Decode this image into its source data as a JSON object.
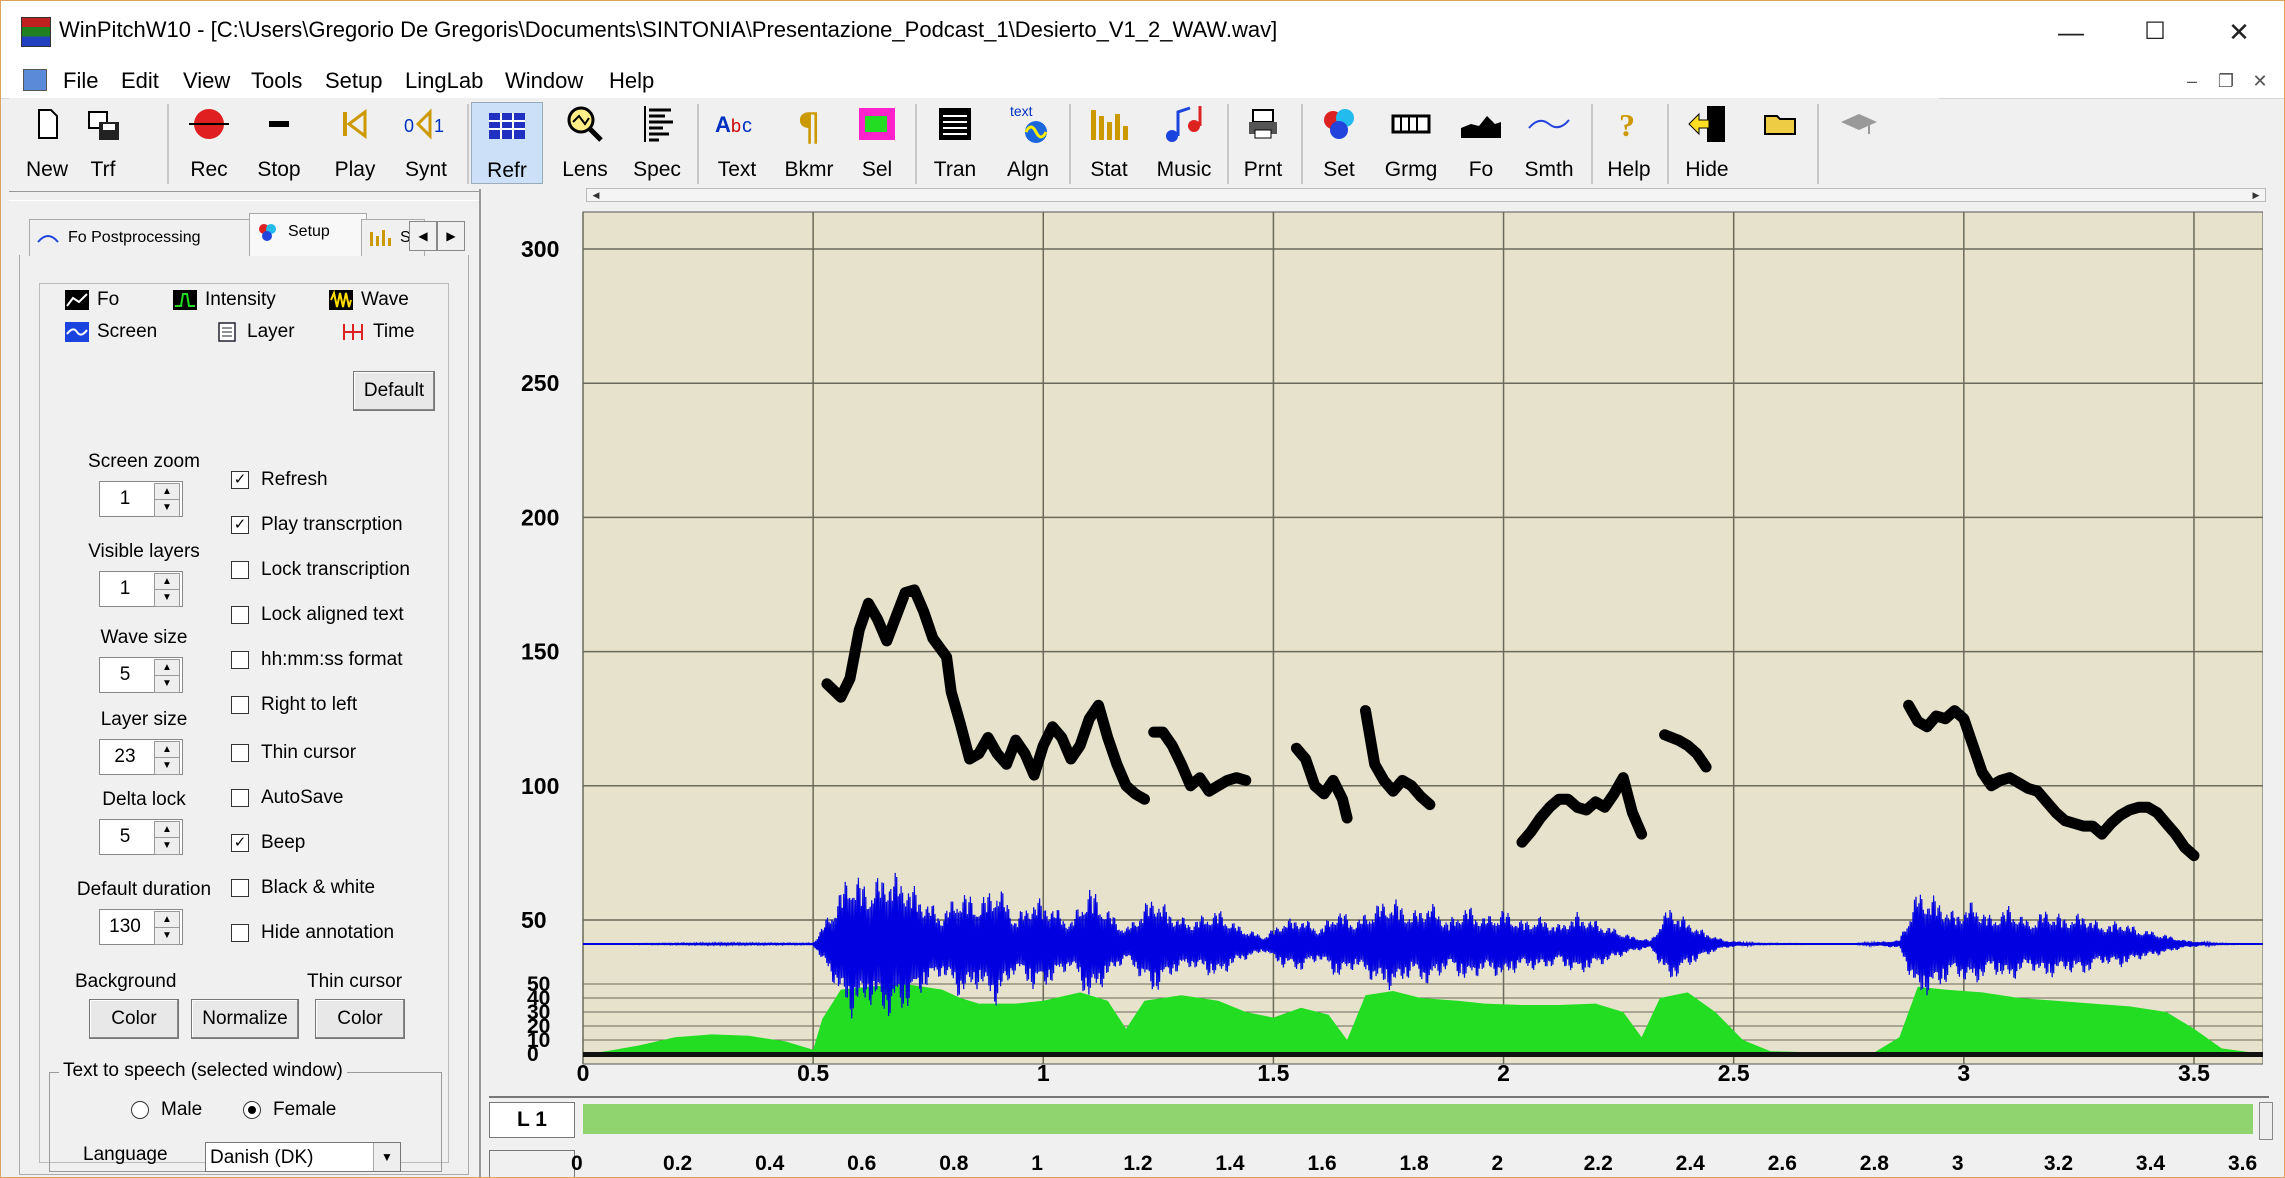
{
  "window": {
    "title": "WinPitchW10 - [C:\\Users\\Gregorio De Gregoris\\Documents\\SINTONIA\\Presentazione_Podcast_1\\Desierto_V1_2_WAW.wav]",
    "minimize_icon": "minimize-icon",
    "maximize_icon": "maximize-icon",
    "close_icon": "close-icon"
  },
  "menu": {
    "items": [
      {
        "label": "File"
      },
      {
        "label": "Edit"
      },
      {
        "label": "View"
      },
      {
        "label": "Tools"
      },
      {
        "label": "Setup"
      },
      {
        "label": "LingLab"
      },
      {
        "label": "Window"
      },
      {
        "label": "Help"
      }
    ]
  },
  "toolbar": {
    "buttons": [
      {
        "label": "New",
        "icon": "new-file-icon"
      },
      {
        "label": "Trf",
        "icon": "transfer-icon"
      },
      {
        "label": "Rec",
        "icon": "record-icon",
        "color": "#e02020"
      },
      {
        "label": "Stop",
        "icon": "stop-icon"
      },
      {
        "label": "Play",
        "icon": "play-icon"
      },
      {
        "label": "Synt",
        "icon": "synth-icon"
      },
      {
        "label": "Refr",
        "icon": "refresh-icon",
        "color": "#2030c0"
      },
      {
        "label": "Lens",
        "icon": "lens-icon"
      },
      {
        "label": "Spec",
        "icon": "spectrum-icon"
      },
      {
        "label": "Text",
        "icon": "text-icon"
      },
      {
        "label": "Bkmr",
        "icon": "bookmark-icon"
      },
      {
        "label": "Sel",
        "icon": "select-icon"
      },
      {
        "label": "Tran",
        "icon": "transcription-icon"
      },
      {
        "label": "Algn",
        "icon": "align-icon",
        "sublabel": "text"
      },
      {
        "label": "Stat",
        "icon": "stats-icon"
      },
      {
        "label": "Music",
        "icon": "music-icon"
      },
      {
        "label": "Prnt",
        "icon": "print-icon"
      },
      {
        "label": "Set",
        "icon": "settings-icon"
      },
      {
        "label": "Grmg",
        "icon": "grammar-icon"
      },
      {
        "label": "Fo",
        "icon": "fo-icon"
      },
      {
        "label": "Smth",
        "icon": "smooth-icon"
      },
      {
        "label": "Help",
        "icon": "help-icon"
      },
      {
        "label": "Hide",
        "icon": "hide-icon"
      },
      {
        "label": "",
        "icon": "open-folder-icon"
      },
      {
        "label": "",
        "icon": "hat-icon"
      }
    ]
  },
  "left_panel": {
    "top_tabs": [
      {
        "label": "Fo Postprocessing",
        "icon": "fo-curve-icon"
      },
      {
        "label": "Setup",
        "icon": "setup-icon"
      },
      {
        "label": "S",
        "icon": "stats-icon"
      }
    ],
    "sub_tabs": [
      {
        "label": "Fo",
        "icon": "fo-icon"
      },
      {
        "label": "Intensity",
        "icon": "intensity-icon"
      },
      {
        "label": "Wave",
        "icon": "wave-icon"
      },
      {
        "label": "Screen",
        "icon": "screen-icon"
      },
      {
        "label": "Layer",
        "icon": "layer-icon"
      },
      {
        "label": "Time",
        "icon": "time-icon"
      }
    ],
    "default_button": "Default",
    "fields": [
      {
        "label": "Screen zoom",
        "value": "1"
      },
      {
        "label": "Visible layers",
        "value": "1"
      },
      {
        "label": "Wave size",
        "value": "5"
      },
      {
        "label": "Layer size",
        "value": "23"
      },
      {
        "label": "Delta lock",
        "value": "5"
      },
      {
        "label": "Default duration",
        "value": "130"
      }
    ],
    "checkboxes": [
      {
        "label": "Refresh",
        "checked": true
      },
      {
        "label": "Play transcrption",
        "checked": true
      },
      {
        "label": "Lock transcription",
        "checked": false
      },
      {
        "label": "Lock aligned text",
        "checked": false
      },
      {
        "label": "hh:mm:ss format",
        "checked": false
      },
      {
        "label": "Right to left",
        "checked": false
      },
      {
        "label": "Thin cursor",
        "checked": false
      },
      {
        "label": "AutoSave",
        "checked": false
      },
      {
        "label": "Beep",
        "checked": true
      },
      {
        "label": "Black & white",
        "checked": false
      },
      {
        "label": "Hide annotation",
        "checked": false
      }
    ],
    "background_label": "Background",
    "thin_cursor_label": "Thin cursor",
    "color_button": "Color",
    "normalize_button": "Normalize",
    "color_button_2": "Color",
    "tts": {
      "legend": "Text to speech (selected window)",
      "male": "Male",
      "female": "Female",
      "selected": "Female",
      "language_label": "Language",
      "language_value": "Danish (DK)"
    }
  },
  "chart_data": {
    "type": "line",
    "y_ticks_pitch": [
      "300",
      "250",
      "200",
      "150",
      "100",
      "50"
    ],
    "y_ticks_intensity": [
      "50",
      "40",
      "30",
      "20",
      "10",
      "0"
    ],
    "x_ticks": [
      "0",
      "0.5",
      "1",
      "1.5",
      "2",
      "2.5",
      "3",
      "3.5"
    ],
    "xlim": [
      0,
      3.65
    ],
    "ylim_pitch": [
      50,
      300
    ],
    "grid": true,
    "background_color": "#e6e2cb",
    "pitch_color": "#000000",
    "waveform_color": "#0000e0",
    "intensity_color": "#22dd22",
    "pitch_segments": [
      [
        [
          0.53,
          138
        ],
        [
          0.56,
          133
        ],
        [
          0.58,
          140
        ],
        [
          0.6,
          158
        ],
        [
          0.62,
          168
        ],
        [
          0.64,
          162
        ],
        [
          0.66,
          154
        ],
        [
          0.68,
          163
        ],
        [
          0.7,
          172
        ],
        [
          0.72,
          173
        ],
        [
          0.74,
          165
        ],
        [
          0.76,
          155
        ],
        [
          0.79,
          148
        ],
        [
          0.8,
          135
        ],
        [
          0.82,
          123
        ],
        [
          0.84,
          110
        ],
        [
          0.86,
          112
        ],
        [
          0.88,
          118
        ],
        [
          0.9,
          112
        ],
        [
          0.92,
          108
        ],
        [
          0.94,
          117
        ],
        [
          0.96,
          112
        ],
        [
          0.98,
          104
        ],
        [
          1.0,
          115
        ],
        [
          1.02,
          122
        ],
        [
          1.04,
          118
        ],
        [
          1.06,
          110
        ],
        [
          1.08,
          115
        ],
        [
          1.1,
          125
        ],
        [
          1.12,
          130
        ],
        [
          1.14,
          118
        ],
        [
          1.16,
          108
        ],
        [
          1.18,
          100
        ],
        [
          1.2,
          97
        ],
        [
          1.22,
          95
        ]
      ],
      [
        [
          1.24,
          120
        ],
        [
          1.26,
          120
        ],
        [
          1.28,
          115
        ],
        [
          1.3,
          108
        ],
        [
          1.32,
          100
        ],
        [
          1.34,
          103
        ],
        [
          1.36,
          98
        ],
        [
          1.38,
          100
        ],
        [
          1.4,
          102
        ],
        [
          1.42,
          103
        ],
        [
          1.44,
          102
        ]
      ],
      [
        [
          1.55,
          114
        ],
        [
          1.57,
          110
        ],
        [
          1.59,
          100
        ],
        [
          1.61,
          97
        ],
        [
          1.63,
          102
        ],
        [
          1.65,
          95
        ],
        [
          1.66,
          88
        ]
      ],
      [
        [
          1.7,
          128
        ],
        [
          1.71,
          118
        ],
        [
          1.72,
          108
        ],
        [
          1.74,
          102
        ],
        [
          1.76,
          98
        ],
        [
          1.78,
          102
        ],
        [
          1.8,
          100
        ],
        [
          1.82,
          96
        ],
        [
          1.84,
          93
        ]
      ],
      [
        [
          2.04,
          79
        ],
        [
          2.06,
          83
        ],
        [
          2.08,
          88
        ],
        [
          2.1,
          92
        ],
        [
          2.12,
          95
        ],
        [
          2.14,
          95
        ],
        [
          2.16,
          92
        ],
        [
          2.18,
          91
        ],
        [
          2.2,
          94
        ],
        [
          2.22,
          92
        ],
        [
          2.24,
          97
        ],
        [
          2.26,
          103
        ],
        [
          2.28,
          90
        ],
        [
          2.3,
          82
        ]
      ],
      [
        [
          2.35,
          119
        ],
        [
          2.38,
          117
        ],
        [
          2.4,
          115
        ],
        [
          2.42,
          112
        ],
        [
          2.44,
          107
        ]
      ],
      [
        [
          2.88,
          130
        ],
        [
          2.9,
          124
        ],
        [
          2.92,
          122
        ],
        [
          2.94,
          126
        ],
        [
          2.96,
          125
        ],
        [
          2.98,
          128
        ],
        [
          3.0,
          125
        ],
        [
          3.02,
          115
        ],
        [
          3.04,
          105
        ],
        [
          3.06,
          100
        ],
        [
          3.08,
          102
        ],
        [
          3.1,
          103
        ],
        [
          3.12,
          101
        ],
        [
          3.14,
          99
        ],
        [
          3.16,
          98
        ],
        [
          3.18,
          94
        ],
        [
          3.2,
          90
        ],
        [
          3.22,
          87
        ],
        [
          3.24,
          86
        ],
        [
          3.26,
          85
        ],
        [
          3.28,
          85
        ],
        [
          3.3,
          82
        ],
        [
          3.32,
          86
        ],
        [
          3.34,
          89
        ],
        [
          3.36,
          91
        ],
        [
          3.38,
          92
        ],
        [
          3.4,
          92
        ],
        [
          3.42,
          90
        ],
        [
          3.44,
          86
        ],
        [
          3.46,
          82
        ],
        [
          3.48,
          77
        ],
        [
          3.5,
          74
        ]
      ]
    ],
    "waveform_envelope": [
      {
        "t": 0.0,
        "a": 0.0
      },
      {
        "t": 0.2,
        "a": 0.01
      },
      {
        "t": 0.3,
        "a": 0.015
      },
      {
        "t": 0.38,
        "a": 0.012
      },
      {
        "t": 0.45,
        "a": 0.01
      },
      {
        "t": 0.5,
        "a": 0.01
      },
      {
        "t": 0.54,
        "a": 0.45
      },
      {
        "t": 0.58,
        "a": 0.95
      },
      {
        "t": 0.62,
        "a": 0.75
      },
      {
        "t": 0.66,
        "a": 0.95
      },
      {
        "t": 0.7,
        "a": 0.85
      },
      {
        "t": 0.74,
        "a": 0.6
      },
      {
        "t": 0.78,
        "a": 0.4
      },
      {
        "t": 0.82,
        "a": 0.7
      },
      {
        "t": 0.86,
        "a": 0.55
      },
      {
        "t": 0.9,
        "a": 0.8
      },
      {
        "t": 0.94,
        "a": 0.35
      },
      {
        "t": 0.98,
        "a": 0.6
      },
      {
        "t": 1.02,
        "a": 0.5
      },
      {
        "t": 1.06,
        "a": 0.3
      },
      {
        "t": 1.1,
        "a": 0.75
      },
      {
        "t": 1.14,
        "a": 0.45
      },
      {
        "t": 1.18,
        "a": 0.2
      },
      {
        "t": 1.24,
        "a": 0.65
      },
      {
        "t": 1.28,
        "a": 0.4
      },
      {
        "t": 1.32,
        "a": 0.3
      },
      {
        "t": 1.38,
        "a": 0.45
      },
      {
        "t": 1.42,
        "a": 0.25
      },
      {
        "t": 1.48,
        "a": 0.1
      },
      {
        "t": 1.52,
        "a": 0.3
      },
      {
        "t": 1.56,
        "a": 0.35
      },
      {
        "t": 1.6,
        "a": 0.2
      },
      {
        "t": 1.64,
        "a": 0.45
      },
      {
        "t": 1.68,
        "a": 0.3
      },
      {
        "t": 1.72,
        "a": 0.5
      },
      {
        "t": 1.76,
        "a": 0.6
      },
      {
        "t": 1.8,
        "a": 0.4
      },
      {
        "t": 1.84,
        "a": 0.55
      },
      {
        "t": 1.88,
        "a": 0.3
      },
      {
        "t": 1.92,
        "a": 0.5
      },
      {
        "t": 1.96,
        "a": 0.35
      },
      {
        "t": 2.0,
        "a": 0.45
      },
      {
        "t": 2.04,
        "a": 0.3
      },
      {
        "t": 2.08,
        "a": 0.35
      },
      {
        "t": 2.12,
        "a": 0.25
      },
      {
        "t": 2.16,
        "a": 0.4
      },
      {
        "t": 2.2,
        "a": 0.3
      },
      {
        "t": 2.24,
        "a": 0.2
      },
      {
        "t": 2.28,
        "a": 0.1
      },
      {
        "t": 2.32,
        "a": 0.05
      },
      {
        "t": 2.36,
        "a": 0.5
      },
      {
        "t": 2.4,
        "a": 0.3
      },
      {
        "t": 2.44,
        "a": 0.15
      },
      {
        "t": 2.48,
        "a": 0.05
      },
      {
        "t": 2.55,
        "a": 0.01
      },
      {
        "t": 2.75,
        "a": 0.0
      },
      {
        "t": 2.86,
        "a": 0.05
      },
      {
        "t": 2.9,
        "a": 0.7
      },
      {
        "t": 2.94,
        "a": 0.6
      },
      {
        "t": 2.98,
        "a": 0.4
      },
      {
        "t": 3.02,
        "a": 0.55
      },
      {
        "t": 3.06,
        "a": 0.35
      },
      {
        "t": 3.1,
        "a": 0.5
      },
      {
        "t": 3.14,
        "a": 0.3
      },
      {
        "t": 3.18,
        "a": 0.45
      },
      {
        "t": 3.22,
        "a": 0.35
      },
      {
        "t": 3.26,
        "a": 0.4
      },
      {
        "t": 3.3,
        "a": 0.25
      },
      {
        "t": 3.34,
        "a": 0.3
      },
      {
        "t": 3.38,
        "a": 0.2
      },
      {
        "t": 3.42,
        "a": 0.15
      },
      {
        "t": 3.48,
        "a": 0.05
      },
      {
        "t": 3.55,
        "a": 0.01
      },
      {
        "t": 3.65,
        "a": 0.0
      }
    ],
    "intensity_points": [
      {
        "t": 0.0,
        "v": 0
      },
      {
        "t": 0.05,
        "v": 2
      },
      {
        "t": 0.12,
        "v": 6
      },
      {
        "t": 0.2,
        "v": 12
      },
      {
        "t": 0.28,
        "v": 14
      },
      {
        "t": 0.36,
        "v": 13
      },
      {
        "t": 0.44,
        "v": 9
      },
      {
        "t": 0.5,
        "v": 3
      },
      {
        "t": 0.52,
        "v": 25
      },
      {
        "t": 0.56,
        "v": 46
      },
      {
        "t": 0.62,
        "v": 48
      },
      {
        "t": 0.7,
        "v": 50
      },
      {
        "t": 0.78,
        "v": 46
      },
      {
        "t": 0.82,
        "v": 40
      },
      {
        "t": 0.86,
        "v": 36
      },
      {
        "t": 0.94,
        "v": 36
      },
      {
        "t": 1.0,
        "v": 38
      },
      {
        "t": 1.08,
        "v": 44
      },
      {
        "t": 1.14,
        "v": 38
      },
      {
        "t": 1.18,
        "v": 18
      },
      {
        "t": 1.22,
        "v": 38
      },
      {
        "t": 1.3,
        "v": 42
      },
      {
        "t": 1.38,
        "v": 38
      },
      {
        "t": 1.44,
        "v": 30
      },
      {
        "t": 1.5,
        "v": 26
      },
      {
        "t": 1.56,
        "v": 33
      },
      {
        "t": 1.62,
        "v": 28
      },
      {
        "t": 1.66,
        "v": 10
      },
      {
        "t": 1.7,
        "v": 42
      },
      {
        "t": 1.76,
        "v": 45
      },
      {
        "t": 1.82,
        "v": 40
      },
      {
        "t": 1.9,
        "v": 38
      },
      {
        "t": 1.96,
        "v": 36
      },
      {
        "t": 2.04,
        "v": 35
      },
      {
        "t": 2.12,
        "v": 35
      },
      {
        "t": 2.2,
        "v": 36
      },
      {
        "t": 2.26,
        "v": 30
      },
      {
        "t": 2.3,
        "v": 12
      },
      {
        "t": 2.34,
        "v": 40
      },
      {
        "t": 2.4,
        "v": 44
      },
      {
        "t": 2.46,
        "v": 30
      },
      {
        "t": 2.52,
        "v": 10
      },
      {
        "t": 2.58,
        "v": 2
      },
      {
        "t": 2.8,
        "v": 0
      },
      {
        "t": 2.86,
        "v": 12
      },
      {
        "t": 2.9,
        "v": 48
      },
      {
        "t": 2.96,
        "v": 46
      },
      {
        "t": 3.04,
        "v": 44
      },
      {
        "t": 3.12,
        "v": 40
      },
      {
        "t": 3.2,
        "v": 38
      },
      {
        "t": 3.28,
        "v": 36
      },
      {
        "t": 3.36,
        "v": 34
      },
      {
        "t": 3.44,
        "v": 30
      },
      {
        "t": 3.5,
        "v": 18
      },
      {
        "t": 3.56,
        "v": 4
      },
      {
        "t": 3.65,
        "v": 0
      }
    ]
  },
  "layer": {
    "label": "L 1",
    "color": "#8fd46e"
  },
  "layer_axis": {
    "ticks": [
      "0",
      "0.2",
      "0.4",
      "0.6",
      "0.8",
      "1",
      "1.2",
      "1.4",
      "1.6",
      "1.8",
      "2",
      "2.2",
      "2.4",
      "2.6",
      "2.8",
      "3",
      "3.2",
      "3.4",
      "3.6"
    ]
  }
}
